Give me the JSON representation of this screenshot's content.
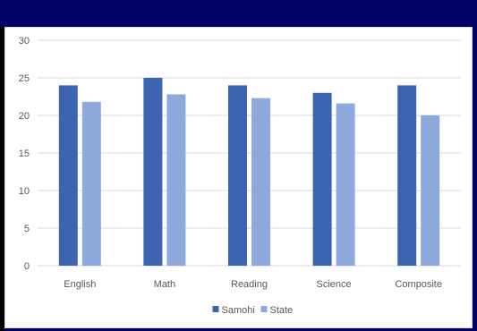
{
  "chart_data": {
    "type": "bar",
    "categories": [
      "English",
      "Math",
      "Reading",
      "Science",
      "Composite"
    ],
    "series": [
      {
        "name": "Samohi",
        "values": [
          24,
          25,
          24,
          23,
          24
        ],
        "color": "#3c64b0"
      },
      {
        "name": "State",
        "values": [
          21.8,
          22.8,
          22.3,
          21.6,
          20.0
        ],
        "color": "#8ea9db"
      }
    ],
    "y_ticks": [
      "0",
      "5",
      "10",
      "15",
      "20",
      "25",
      "30"
    ],
    "ylim": [
      0,
      30
    ],
    "grid": true,
    "legend_position": "bottom",
    "title": "",
    "xlabel": "",
    "ylabel": ""
  },
  "colors": {
    "banner": "#000066",
    "gridline": "#d9d9d9",
    "text": "#595959"
  }
}
